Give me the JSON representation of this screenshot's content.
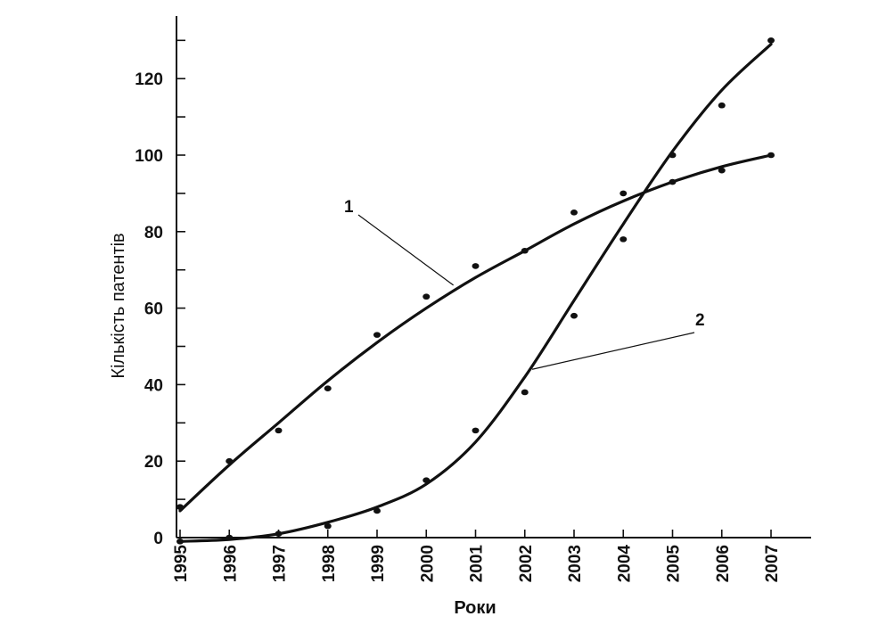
{
  "chart_data": {
    "type": "line",
    "xlabel": "Роки",
    "ylabel": "Кількість патентів",
    "x": [
      1995,
      1996,
      1997,
      1998,
      1999,
      2000,
      2001,
      2002,
      2003,
      2004,
      2005,
      2006,
      2007
    ],
    "xlim": [
      1995,
      2007
    ],
    "ylim": [
      0,
      130
    ],
    "yticks": [
      0,
      20,
      40,
      60,
      80,
      100,
      120
    ],
    "grid": false,
    "series": [
      {
        "name": "1",
        "points": [
          8,
          20,
          28,
          39,
          53,
          63,
          71,
          75,
          85,
          90,
          93,
          96,
          100
        ],
        "curve": [
          7,
          19,
          30,
          41,
          51,
          60,
          68,
          75,
          82,
          88,
          93,
          97,
          100
        ]
      },
      {
        "name": "2",
        "points": [
          -1,
          0,
          1,
          3,
          7,
          15,
          28,
          38,
          58,
          78,
          100,
          113,
          130
        ],
        "curve": [
          -1,
          -0.5,
          1,
          4,
          8,
          14,
          25,
          42,
          62,
          82,
          101,
          117,
          129
        ]
      }
    ]
  }
}
